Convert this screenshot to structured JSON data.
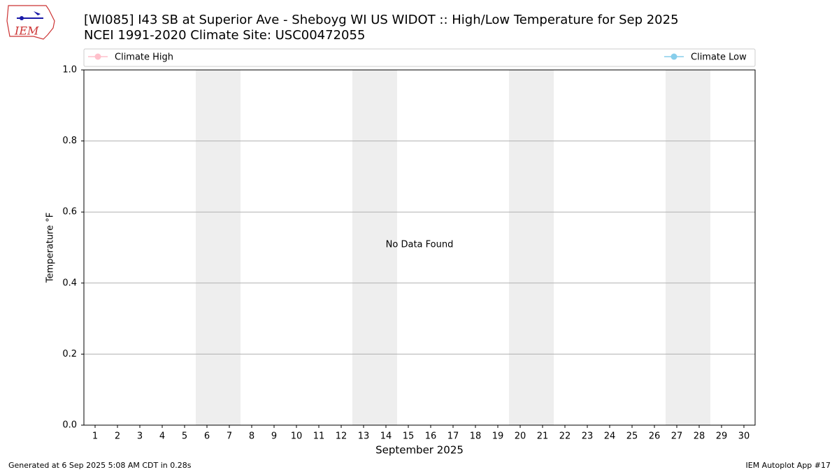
{
  "chart_data": {
    "type": "line",
    "title": "[WI085] I43 SB at Superior Ave - Sheboyg WI US WIDOT :: High/Low Temperature for Sep 2025",
    "subtitle": "NCEI 1991-2020 Climate Site: USC00472055",
    "xlabel": "September 2025",
    "ylabel": "Temperature °F",
    "annotation": "No Data Found",
    "categories": [
      1,
      2,
      3,
      4,
      5,
      6,
      7,
      8,
      9,
      10,
      11,
      12,
      13,
      14,
      15,
      16,
      17,
      18,
      19,
      20,
      21,
      22,
      23,
      24,
      25,
      26,
      27,
      28,
      29,
      30
    ],
    "shaded_categories": [
      6,
      7,
      13,
      14,
      20,
      21,
      27,
      28
    ],
    "series": [
      {
        "name": "Climate High",
        "color": "#ffc0cb",
        "values": [
          null,
          null,
          null,
          null,
          null,
          null,
          null,
          null,
          null,
          null,
          null,
          null,
          null,
          null,
          null,
          null,
          null,
          null,
          null,
          null,
          null,
          null,
          null,
          null,
          null,
          null,
          null,
          null,
          null,
          null
        ]
      },
      {
        "name": "Climate Low",
        "color": "#87ceeb",
        "values": [
          null,
          null,
          null,
          null,
          null,
          null,
          null,
          null,
          null,
          null,
          null,
          null,
          null,
          null,
          null,
          null,
          null,
          null,
          null,
          null,
          null,
          null,
          null,
          null,
          null,
          null,
          null,
          null,
          null,
          null
        ]
      }
    ],
    "ylim": [
      0,
      1
    ],
    "yticks": [
      {
        "value": 0,
        "label": "0.0"
      },
      {
        "value": 0.2,
        "label": "0.2"
      },
      {
        "value": 0.4,
        "label": "0.4"
      },
      {
        "value": 0.6,
        "label": "0.6"
      },
      {
        "value": 0.8,
        "label": "0.8"
      },
      {
        "value": 1,
        "label": "1.0"
      }
    ],
    "grid": true
  },
  "logo": {
    "text": "IEM"
  },
  "footer": {
    "left": "Generated at 6 Sep 2025 5:08 AM CDT in 0.28s",
    "right": "IEM Autoplot App #17"
  }
}
